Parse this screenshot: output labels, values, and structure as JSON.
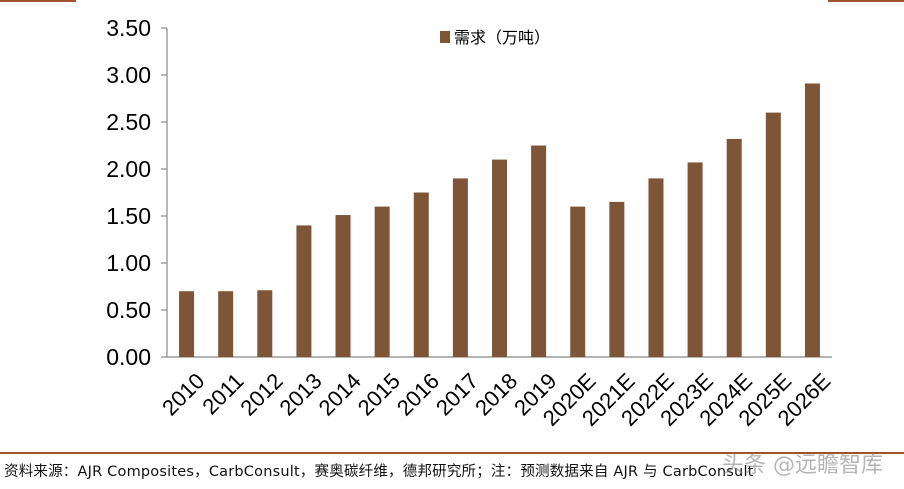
{
  "chart_data": {
    "type": "bar",
    "categories": [
      "2010",
      "2011",
      "2012",
      "2013",
      "2014",
      "2015",
      "2016",
      "2017",
      "2018",
      "2019",
      "2020E",
      "2021E",
      "2022E",
      "2023E",
      "2024E",
      "2025E",
      "2026E"
    ],
    "series": [
      {
        "name": "需求（万吨）",
        "values": [
          0.7,
          0.7,
          0.71,
          1.4,
          1.51,
          1.6,
          1.75,
          1.9,
          2.1,
          2.25,
          1.6,
          1.65,
          1.9,
          2.07,
          2.32,
          2.6,
          2.91
        ]
      }
    ],
    "ylim": [
      0,
      3.5
    ],
    "yticks": [
      "0.00",
      "0.50",
      "1.00",
      "1.50",
      "2.00",
      "2.50",
      "3.00",
      "3.50"
    ],
    "grid": false,
    "legend": "top-center",
    "colors": {
      "bar": "#7f5537",
      "axis": "#888888",
      "rule": "#a0522d"
    }
  },
  "footer": {
    "source": "资料来源：AJR Composites，CarbConsult，赛奥碳纤维，德邦研究所；注：预测数据来自 AJR 与 CarbConsult",
    "watermark": "头条 @远瞻智库"
  }
}
